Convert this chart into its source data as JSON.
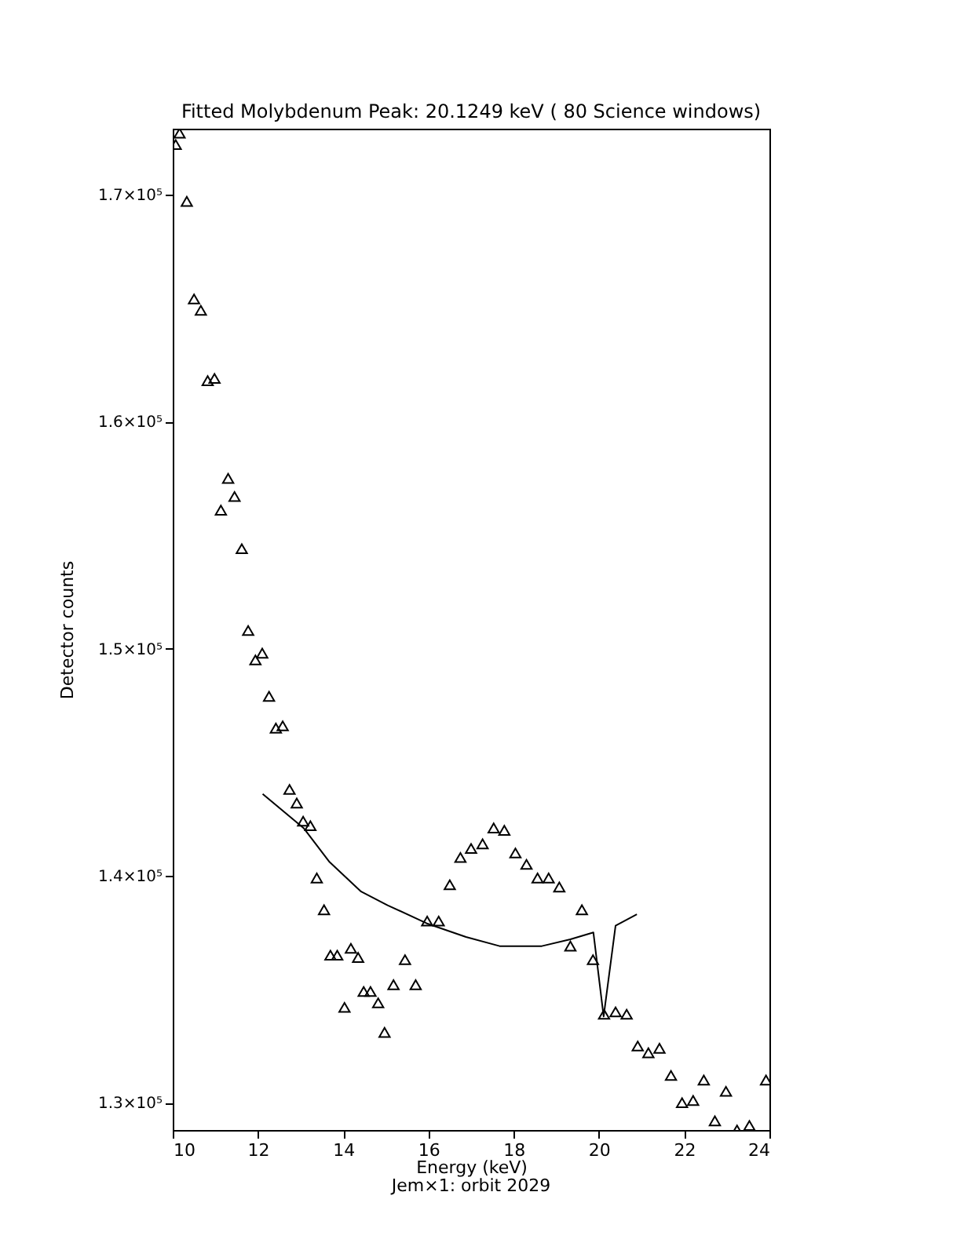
{
  "chart_data": {
    "type": "scatter",
    "title": "Fitted Molybdenum Peak: 20.1249 keV ( 80 Science windows)",
    "xlabel": "Energy (keV)",
    "ylabel": "Detector counts",
    "annotations": [
      "Jem×1: orbit 2029"
    ],
    "xlim": [
      10,
      24
    ],
    "xticks": [
      10,
      12,
      14,
      16,
      18,
      20,
      22,
      24
    ],
    "ylim": [
      128800,
      172900
    ],
    "yticks": [
      {
        "value": 130000,
        "label": "1.3×10⁵"
      },
      {
        "value": 140000,
        "label": "1.4×10⁵"
      },
      {
        "value": 150000,
        "label": "1.5×10⁵"
      },
      {
        "value": 160000,
        "label": "1.6×10⁵"
      },
      {
        "value": 170000,
        "label": "1.7×10⁵"
      }
    ],
    "grid": false,
    "series": [
      {
        "marker": "triangle",
        "color": "#000000",
        "x": [
          10.07,
          10.16,
          10.33,
          10.5,
          10.66,
          10.82,
          10.98,
          11.13,
          11.3,
          11.45,
          11.62,
          11.77,
          11.94,
          12.1,
          12.26,
          12.42,
          12.58,
          12.74,
          12.91,
          13.06,
          13.23,
          13.38,
          13.55,
          13.7,
          13.86,
          14.03,
          14.18,
          14.35,
          14.48,
          14.64,
          14.82,
          14.97,
          15.18,
          15.45,
          15.7,
          15.97,
          16.24,
          16.5,
          16.75,
          17.0,
          17.27,
          17.53,
          17.78,
          18.04,
          18.3,
          18.56,
          18.82,
          19.07,
          19.33,
          19.6,
          19.86,
          20.12,
          20.39,
          20.65,
          20.91,
          21.16,
          21.42,
          21.69,
          21.95,
          22.21,
          22.46,
          22.72,
          22.98,
          23.24,
          23.53,
          23.92
        ],
        "values": [
          172200,
          172700,
          169700,
          165400,
          164900,
          161800,
          161900,
          156100,
          157500,
          156700,
          154400,
          150800,
          149500,
          149800,
          147900,
          146500,
          146600,
          143800,
          143200,
          142400,
          142200,
          139900,
          138500,
          136500,
          136500,
          134200,
          136800,
          136400,
          134900,
          134900,
          134400,
          133100,
          135200,
          136300,
          135200,
          138000,
          138000,
          139600,
          140800,
          141200,
          141400,
          142100,
          142000,
          141000,
          140500,
          139900,
          139900,
          139500,
          136900,
          138500,
          136300,
          133900,
          134000,
          133900,
          132500,
          132200,
          132400,
          131200,
          130000,
          130100,
          131000,
          129200,
          130500,
          128800,
          129000,
          131000
        ]
      },
      {
        "type": "line",
        "color": "#000000",
        "x": [
          12.11,
          13.07,
          13.68,
          14.42,
          15.04,
          15.96,
          16.88,
          17.67,
          18.66,
          19.33,
          19.87,
          20.11,
          20.39,
          20.89
        ],
        "values": [
          143600,
          142100,
          140600,
          139300,
          138700,
          137900,
          137300,
          136900,
          136900,
          137200,
          137500,
          133800,
          137800,
          138300
        ]
      }
    ]
  }
}
